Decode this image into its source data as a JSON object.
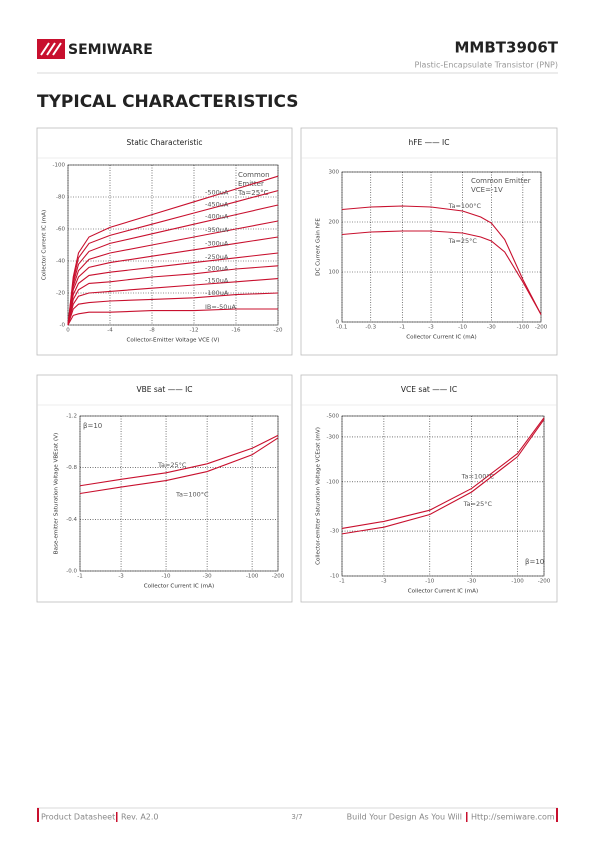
{
  "header": {
    "brand": "SEMIWARE",
    "part": "MMBT3906T",
    "subtitle": "Plastic-Encapsulate Transistor (PNP)"
  },
  "section_title": "TYPICAL CHARACTERISTICS",
  "chart_data": [
    {
      "type": "line",
      "title": "Static Characteristic",
      "x_label": "Collector-Emitter Voltage VCE (V)",
      "y_label": "Collector Current IC (mA)",
      "x": [
        0,
        -0.5,
        -1,
        -2,
        -4,
        -8,
        -12,
        -16,
        -20
      ],
      "xlim": [
        0,
        -20
      ],
      "xticks": [
        0,
        -4,
        -8,
        -12,
        -16,
        -20
      ],
      "ylim": [
        0,
        -100
      ],
      "yticks": [
        {
          "value": 0,
          "label": "-0"
        },
        -20,
        -40,
        -60,
        -80,
        -100
      ],
      "grid": true,
      "annotations": [
        "Common",
        "Emitter",
        "Ta=25°C"
      ],
      "series": [
        {
          "name": "-500uA",
          "color": "#c8102e",
          "values": [
            0,
            -30,
            -45,
            -55,
            -61,
            -69,
            -77,
            -85,
            -93
          ]
        },
        {
          "name": "-450uA",
          "color": "#c8102e",
          "values": [
            0,
            -28,
            -42,
            -51,
            -56,
            -63,
            -70,
            -77,
            -84
          ]
        },
        {
          "name": "-400uA",
          "color": "#c8102e",
          "values": [
            0,
            -26,
            -38,
            -46,
            -51,
            -57,
            -63,
            -69,
            -75
          ]
        },
        {
          "name": "-350uA",
          "color": "#c8102e",
          "values": [
            0,
            -24,
            -34,
            -41,
            -45,
            -50,
            -55,
            -60,
            -65
          ]
        },
        {
          "name": "-300uA",
          "color": "#c8102e",
          "values": [
            0,
            -22,
            -30,
            -36,
            -39,
            -43,
            -47,
            -51,
            -55
          ]
        },
        {
          "name": "-250uA",
          "color": "#c8102e",
          "values": [
            0,
            -19,
            -26,
            -31,
            -33,
            -36,
            -39,
            -42,
            -45
          ]
        },
        {
          "name": "-200uA",
          "color": "#c8102e",
          "values": [
            0,
            -16,
            -22,
            -26,
            -27,
            -30,
            -32,
            -35,
            -37
          ]
        },
        {
          "name": "-150uA",
          "color": "#c8102e",
          "values": [
            0,
            -13,
            -18,
            -20,
            -21,
            -23,
            -25,
            -27,
            -29
          ]
        },
        {
          "name": "-100uA",
          "color": "#c8102e",
          "values": [
            0,
            -10,
            -13,
            -14,
            -15,
            -16,
            -17,
            -19,
            -20
          ]
        },
        {
          "name": "IB=-50uA",
          "color": "#c8102e",
          "values": [
            0,
            -6,
            -7,
            -8,
            -8,
            -9,
            -9,
            -10,
            -10
          ]
        }
      ]
    },
    {
      "type": "line",
      "title": "hFE —— IC",
      "x_label": "Collector Current IC (mA)",
      "y_label": "DC Current Gain hFE",
      "x": [
        -0.1,
        -0.3,
        -1,
        -3,
        -10,
        -20,
        -30,
        -50,
        -100,
        -200
      ],
      "xlim": [
        -0.1,
        -200
      ],
      "xticks": [
        -0.1,
        -0.3,
        -1,
        -3,
        -10,
        -30,
        -100,
        -200
      ],
      "xlog": true,
      "ylim": [
        0,
        300
      ],
      "yticks": [
        0,
        100,
        200,
        300
      ],
      "grid": true,
      "annotations": [
        "Common Emitter",
        "VCE=-1V"
      ],
      "series": [
        {
          "name": "Ta=100°C",
          "color": "#c8102e",
          "values": [
            225,
            230,
            232,
            230,
            222,
            210,
            198,
            165,
            85,
            15
          ]
        },
        {
          "name": "Ta=25°C",
          "color": "#c8102e",
          "values": [
            175,
            180,
            182,
            182,
            178,
            170,
            162,
            140,
            80,
            15
          ]
        }
      ]
    },
    {
      "type": "line",
      "title": "VBE sat —— IC",
      "x_label": "Collector Current IC (mA)",
      "y_label": "Base-emitter Saturation Voltage VBEsat (V)",
      "x": [
        -1,
        -3,
        -10,
        -30,
        -100,
        -200
      ],
      "xlim": [
        -1,
        -200
      ],
      "xticks": [
        -1,
        -3,
        -10,
        -30,
        -100,
        -200
      ],
      "xlog": true,
      "ylim": [
        0,
        -1.2
      ],
      "yticks": [
        {
          "value": 0,
          "label": "-0.0"
        },
        -0.4,
        -0.8,
        -1.2
      ],
      "grid": true,
      "annotations": [
        "β=10"
      ],
      "series": [
        {
          "name": "Ta=25°C",
          "color": "#c8102e",
          "values": [
            -0.66,
            -0.71,
            -0.76,
            -0.83,
            -0.95,
            -1.05
          ]
        },
        {
          "name": "Ta=100°C",
          "color": "#c8102e",
          "values": [
            -0.6,
            -0.65,
            -0.7,
            -0.77,
            -0.9,
            -1.03
          ]
        }
      ]
    },
    {
      "type": "line",
      "title": "VCE sat —— IC",
      "x_label": "Collector Current IC (mA)",
      "y_label": "Collector-emitter Saturation Voltage VCEsat (mV)",
      "x": [
        -1,
        -3,
        -10,
        -30,
        -100,
        -200
      ],
      "xlim": [
        -1,
        -200
      ],
      "xticks": [
        -1,
        -3,
        -10,
        -30,
        -100,
        -200
      ],
      "xlog": true,
      "ylim": [
        -10,
        -500
      ],
      "yticks": [
        -10,
        -30,
        -100,
        -300,
        -500
      ],
      "ylog": true,
      "grid": true,
      "annotations": [
        "β=10"
      ],
      "series": [
        {
          "name": "Ta=100°C",
          "color": "#c8102e",
          "values": [
            -32,
            -38,
            -50,
            -85,
            -200,
            -480
          ]
        },
        {
          "name": "Ta=25°C",
          "color": "#c8102e",
          "values": [
            -28,
            -33,
            -45,
            -78,
            -185,
            -460
          ]
        }
      ]
    }
  ],
  "footer": {
    "left": "Product Datasheet",
    "rev": "Rev. A2.0",
    "page": "3/7",
    "slogan": "Build Your Design As You Will",
    "url": "Http://semiware.com"
  }
}
